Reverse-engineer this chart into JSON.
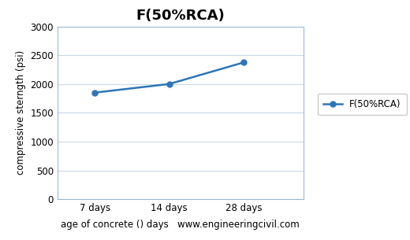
{
  "title": "F(50%RCA)",
  "x_labels": [
    "7 days",
    "14 days",
    "28 days"
  ],
  "x_values": [
    1,
    2,
    3
  ],
  "x_tick_positions": [
    1,
    2,
    3
  ],
  "y_values": [
    1850,
    2000,
    2375
  ],
  "line_color": "#2E75B6",
  "marker": "o",
  "marker_size": 5,
  "xlabel": "age of concrete () days   www.engineeringcivil.com",
  "ylabel": "compressive sterngth (psi)",
  "ylim": [
    0,
    3000
  ],
  "xlim": [
    0.5,
    3.8
  ],
  "yticks": [
    0,
    500,
    1000,
    1500,
    2000,
    2500,
    3000
  ],
  "legend_label": "F(50%RCA)",
  "title_fontsize": 13,
  "axis_label_fontsize": 8.5,
  "tick_fontsize": 8.5,
  "legend_fontsize": 8.5,
  "background_color": "#ffffff",
  "plot_bg_color": "#ffffff",
  "grid_color": "#c8d8e8",
  "spine_color": "#9ab7d3"
}
